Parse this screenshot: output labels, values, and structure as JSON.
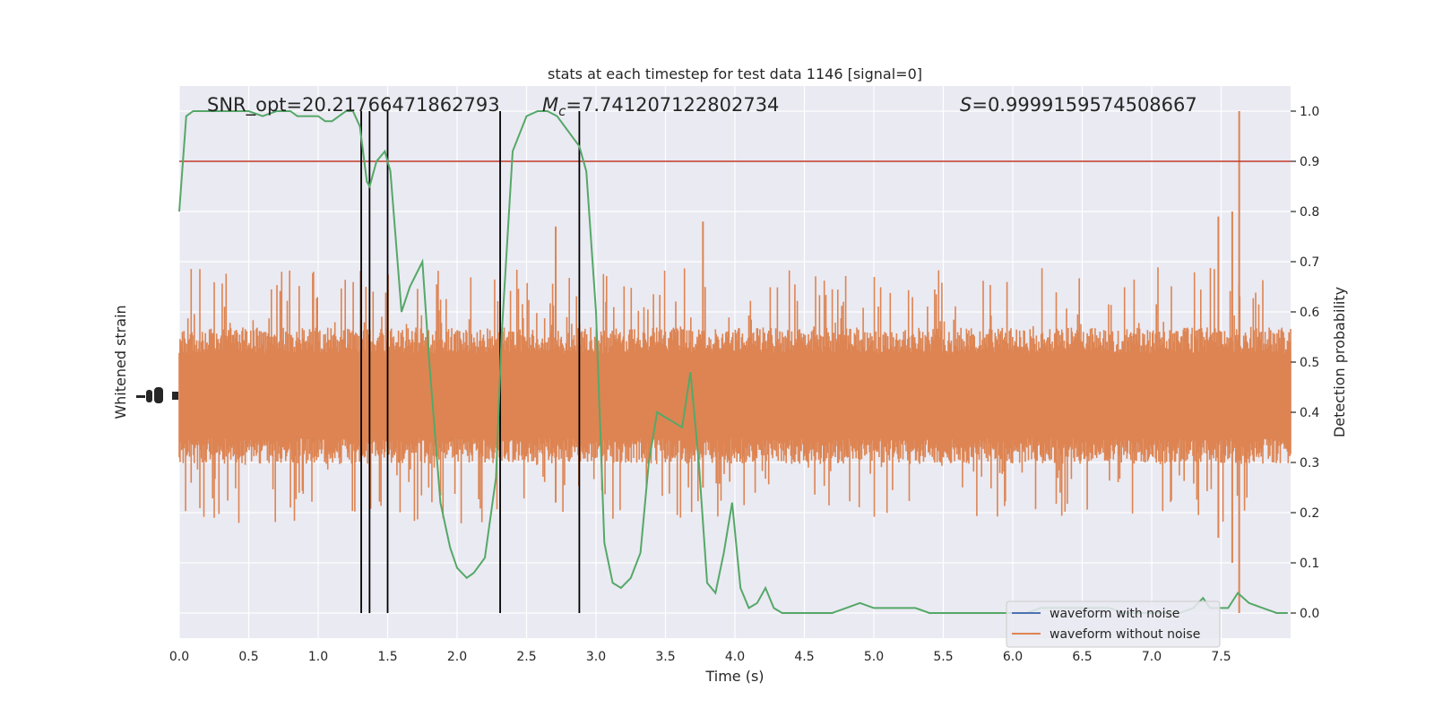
{
  "chart_data": {
    "type": "line",
    "title": "stats at each timestep for test data 1146 [signal=0]",
    "xlabel": "Time (s)",
    "ylabel_left": "Whitened strain",
    "ylabel_right": "Detection probability",
    "xlim": [
      0,
      8.0
    ],
    "ylim_right": [
      -0.05,
      1.05
    ],
    "x_ticks": [
      0,
      0.5,
      1,
      1.5,
      2,
      2.5,
      3,
      3.5,
      4,
      4.5,
      5,
      5.5,
      6,
      6.5,
      7,
      7.5
    ],
    "x_tick_labels": [
      "0.0",
      "0.5",
      "1.0",
      "1.5",
      "2.0",
      "2.5",
      "3.0",
      "3.5",
      "4.0",
      "4.5",
      "5.0",
      "5.5",
      "6.0",
      "6.5",
      "7.0",
      "7.5"
    ],
    "y_right_ticks": [
      0,
      0.1,
      0.2,
      0.3,
      0.4,
      0.5,
      0.6,
      0.7,
      0.8,
      0.9,
      1.0
    ],
    "y_right_tick_labels": [
      "0.0",
      "0.1",
      "0.2",
      "0.3",
      "0.4",
      "0.5",
      "0.6",
      "0.7",
      "0.8",
      "0.9",
      "1.0"
    ],
    "annotations": [
      {
        "id": "snr",
        "text": "SNR_opt=20.21766471862793"
      },
      {
        "id": "mc",
        "prefix": "M",
        "sub": "c",
        "text": "=7.741207122802734"
      },
      {
        "id": "s",
        "prefix": "S",
        "text": "=0.9999159574508667"
      }
    ],
    "threshold": {
      "y": 0.9,
      "color": "#c0392b"
    },
    "vertical_lines_x": [
      1.31,
      1.37,
      1.5,
      2.31,
      2.88
    ],
    "series": [
      {
        "name": "waveform with noise",
        "color": "#4c72b0"
      },
      {
        "name": "waveform without noise",
        "color": "#dd8452",
        "band": {
          "center": 0.433,
          "half_width": 0.085,
          "spike_max": 0.18
        },
        "spikes": [
          {
            "x": 7.63,
            "top": 1.0,
            "bottom": 0.0
          },
          {
            "x": 3.77,
            "top": 0.78,
            "bottom": 0.25
          },
          {
            "x": 7.58,
            "top": 0.8,
            "bottom": 0.1
          },
          {
            "x": 7.48,
            "top": 0.79,
            "bottom": 0.15
          },
          {
            "x": 2.71,
            "top": 0.77,
            "bottom": 0.22
          }
        ]
      },
      {
        "name": "",
        "color": "#55a868",
        "x": [
          0.0,
          0.05,
          0.1,
          0.2,
          0.3,
          0.4,
          0.5,
          0.6,
          0.7,
          0.8,
          0.85,
          0.9,
          0.95,
          1.0,
          1.05,
          1.1,
          1.15,
          1.2,
          1.25,
          1.3,
          1.35,
          1.37,
          1.42,
          1.48,
          1.52,
          1.6,
          1.66,
          1.75,
          1.8,
          1.88,
          1.95,
          2.0,
          2.07,
          2.12,
          2.2,
          2.28,
          2.32,
          2.4,
          2.5,
          2.58,
          2.65,
          2.72,
          2.8,
          2.88,
          2.93,
          3.0,
          3.06,
          3.12,
          3.18,
          3.25,
          3.32,
          3.38,
          3.44,
          3.5,
          3.56,
          3.62,
          3.68,
          3.74,
          3.8,
          3.86,
          3.92,
          3.98,
          4.04,
          4.1,
          4.16,
          4.22,
          4.28,
          4.34,
          4.4,
          4.5,
          4.6,
          4.7,
          4.8,
          4.9,
          5.0,
          5.1,
          5.2,
          5.3,
          5.4,
          5.5,
          5.6,
          5.7,
          5.8,
          5.9,
          6.0,
          6.1,
          6.2,
          6.3,
          6.4,
          6.5,
          6.6,
          6.7,
          6.8,
          6.9,
          7.0,
          7.1,
          7.2,
          7.3,
          7.37,
          7.42,
          7.48,
          7.55,
          7.62,
          7.7,
          7.8,
          7.9,
          7.98
        ],
        "y": [
          0.8,
          0.99,
          1.0,
          1.0,
          1.0,
          1.0,
          1.0,
          0.99,
          1.0,
          1.0,
          0.99,
          0.99,
          0.99,
          0.99,
          0.98,
          0.98,
          0.99,
          1.0,
          1.0,
          0.97,
          0.86,
          0.85,
          0.9,
          0.92,
          0.88,
          0.6,
          0.65,
          0.7,
          0.5,
          0.22,
          0.13,
          0.09,
          0.07,
          0.08,
          0.11,
          0.27,
          0.55,
          0.92,
          0.99,
          1.0,
          1.0,
          0.99,
          0.96,
          0.93,
          0.88,
          0.6,
          0.14,
          0.06,
          0.05,
          0.07,
          0.12,
          0.3,
          0.4,
          0.39,
          0.38,
          0.37,
          0.48,
          0.3,
          0.06,
          0.04,
          0.12,
          0.22,
          0.05,
          0.01,
          0.02,
          0.05,
          0.01,
          0.0,
          0.0,
          0.0,
          0.0,
          0.0,
          0.01,
          0.02,
          0.01,
          0.01,
          0.01,
          0.01,
          0.0,
          0.0,
          0.0,
          0.0,
          0.0,
          0.0,
          0.0,
          0.0,
          0.01,
          0.01,
          0.01,
          0.01,
          0.01,
          0.01,
          0.0,
          0.0,
          0.0,
          0.0,
          0.0,
          0.01,
          0.03,
          0.01,
          0.01,
          0.01,
          0.04,
          0.02,
          0.01,
          0.0,
          0.0
        ]
      }
    ],
    "grid": true,
    "legend_position": "lower-right"
  }
}
